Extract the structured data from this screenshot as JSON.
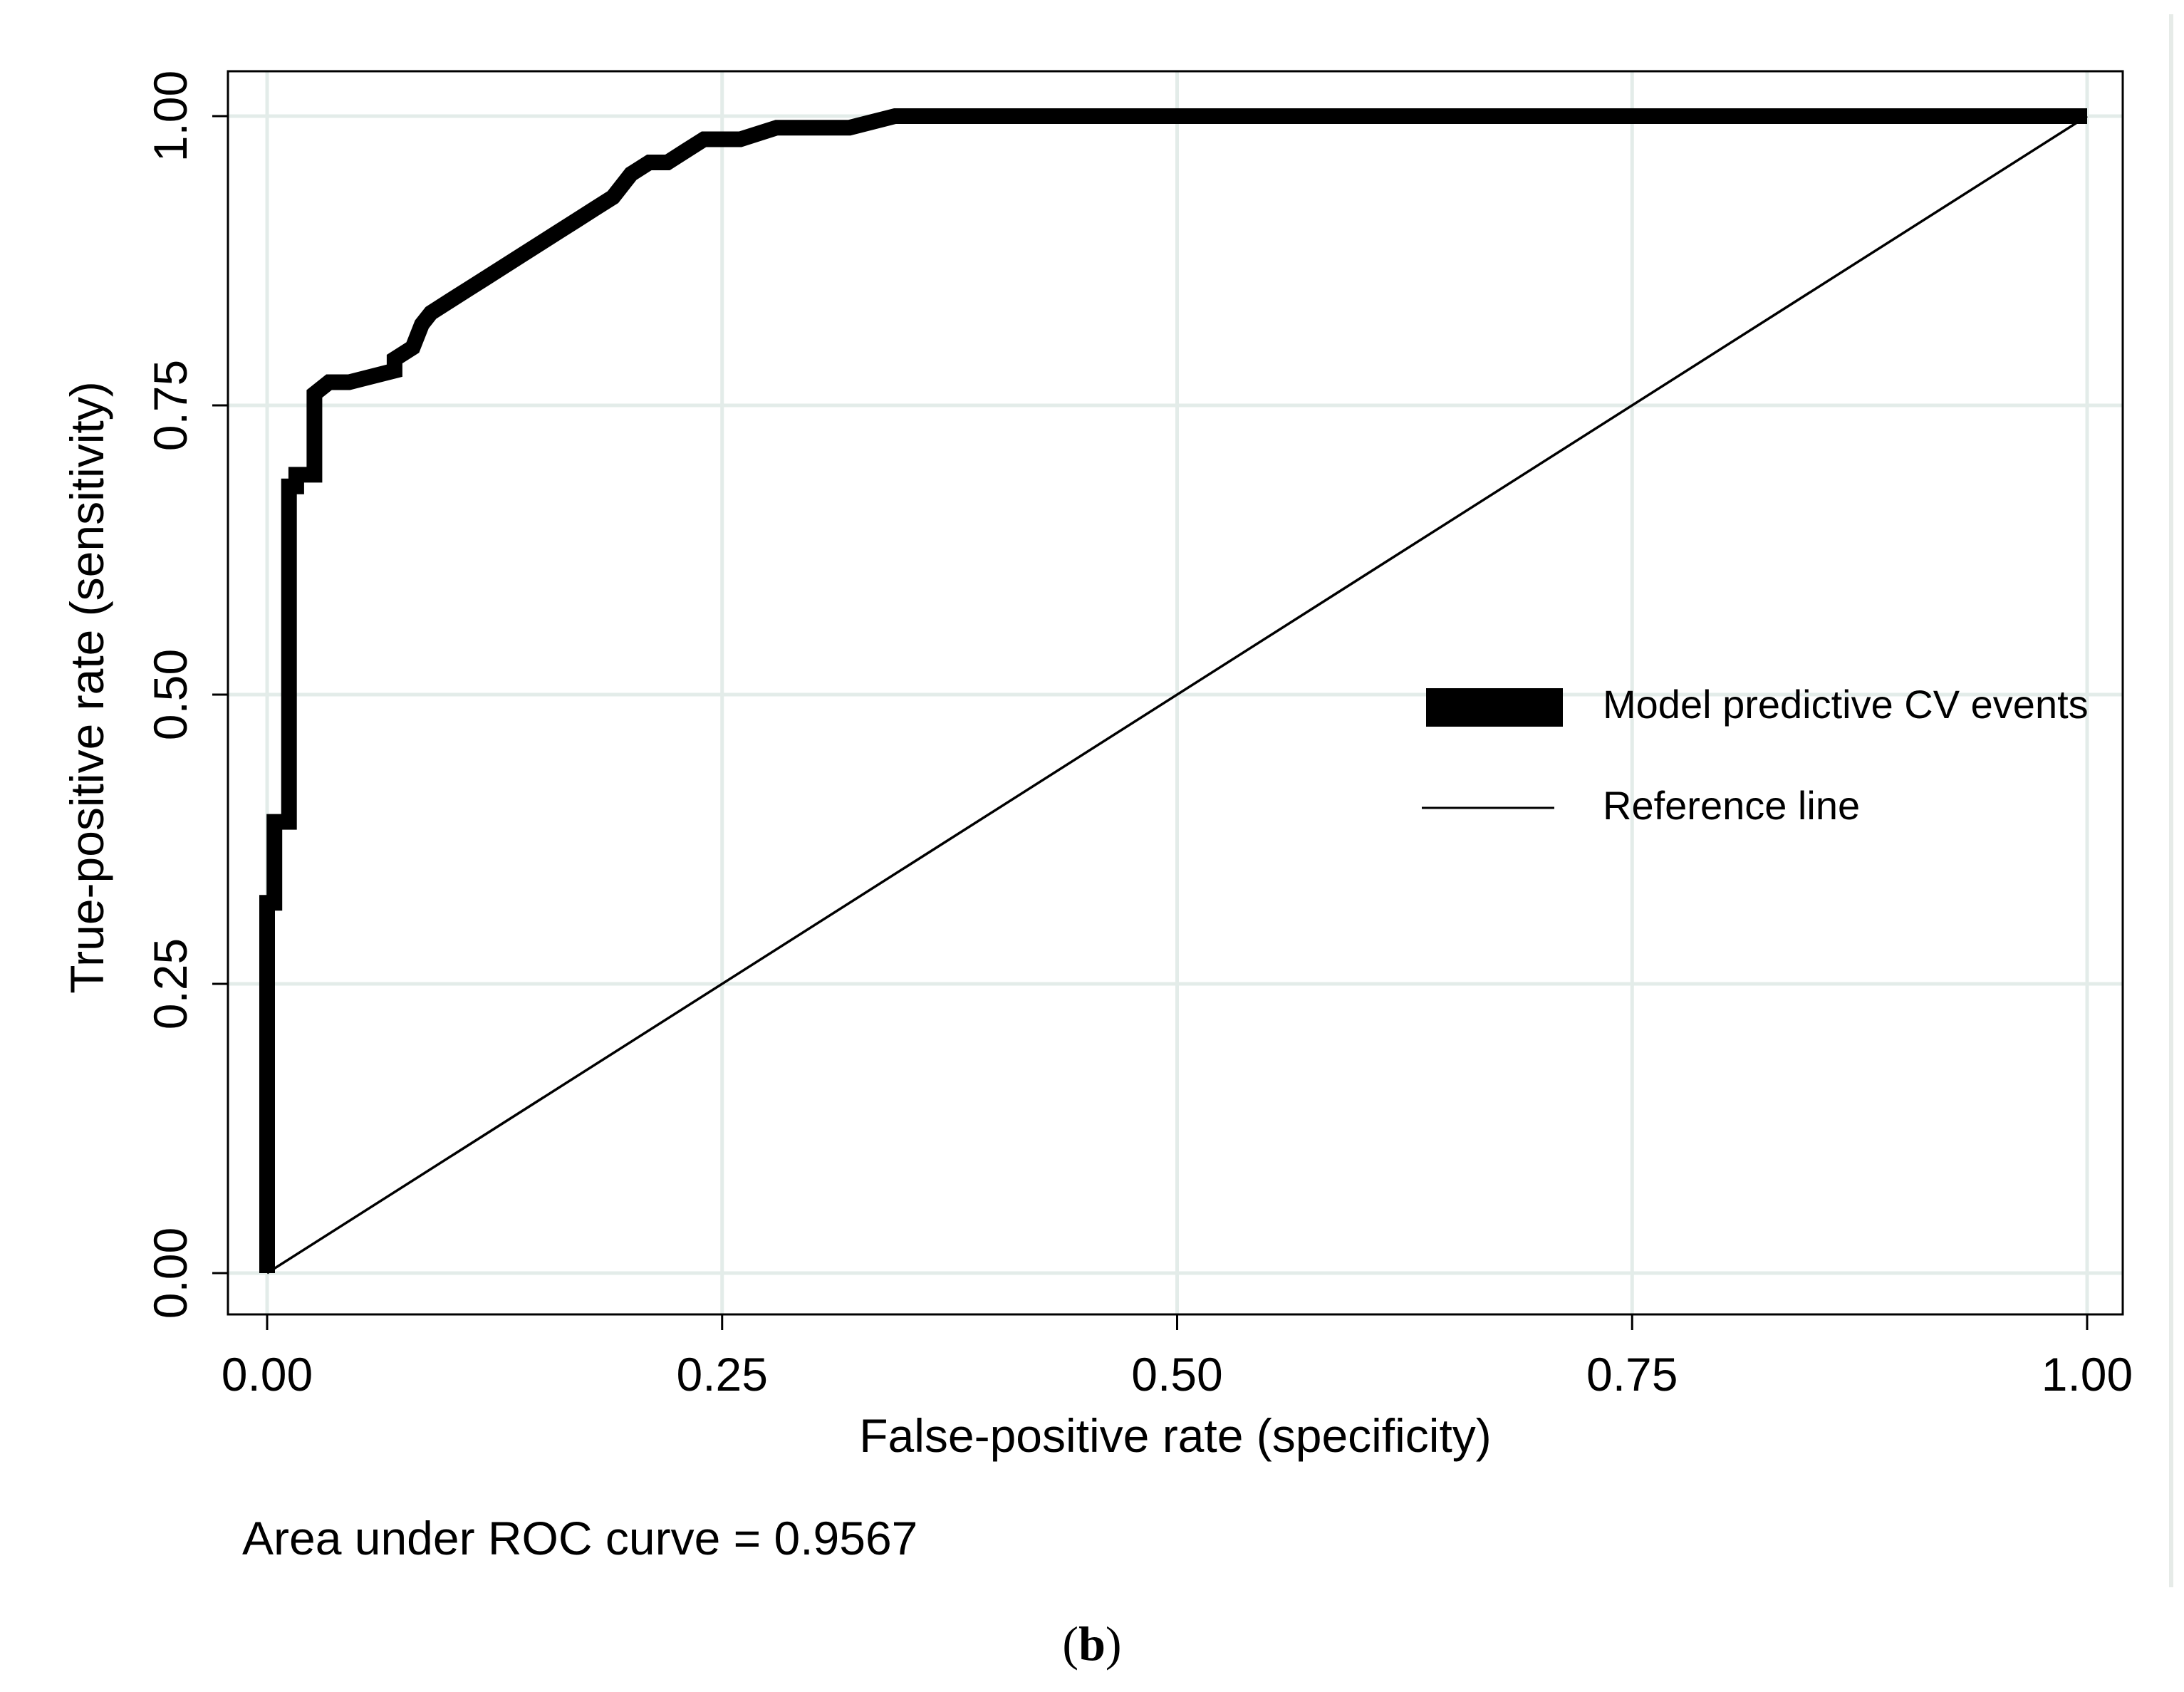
{
  "chart_data": {
    "type": "line",
    "xlabel": "False-positive rate (specificity)",
    "ylabel": "True-positive rate (sensitivity)",
    "xlim": [
      0,
      1
    ],
    "ylim": [
      0,
      1
    ],
    "xticks": [
      "0.00",
      "0.25",
      "0.50",
      "0.75",
      "1.00"
    ],
    "yticks": [
      "0.00",
      "0.25",
      "0.50",
      "0.75",
      "1.00"
    ],
    "grid": true,
    "legend_position": "right",
    "annotation": "Area under ROC curve = 0.9567",
    "series": [
      {
        "name": "Model predictive CV events",
        "style": "thick",
        "x": [
          0,
          0,
          0.004,
          0.004,
          0.012,
          0.012,
          0.016,
          0.016,
          0.026,
          0.026,
          0.034,
          0.045,
          0.07,
          0.07,
          0.08,
          0.085,
          0.09,
          0.1,
          0.11,
          0.12,
          0.13,
          0.14,
          0.15,
          0.16,
          0.17,
          0.18,
          0.19,
          0.2,
          0.21,
          0.22,
          0.23,
          0.24,
          0.26,
          0.28,
          0.3,
          0.32,
          0.345,
          0.4,
          0.5,
          0.6,
          0.7,
          0.8,
          0.9,
          1.0
        ],
        "y": [
          0,
          0.32,
          0.32,
          0.39,
          0.39,
          0.68,
          0.68,
          0.69,
          0.69,
          0.76,
          0.77,
          0.77,
          0.78,
          0.79,
          0.8,
          0.82,
          0.83,
          0.84,
          0.85,
          0.86,
          0.87,
          0.88,
          0.89,
          0.9,
          0.91,
          0.92,
          0.93,
          0.95,
          0.96,
          0.96,
          0.97,
          0.98,
          0.98,
          0.99,
          0.99,
          0.99,
          1.0,
          1.0,
          1.0,
          1.0,
          1.0,
          1.0,
          1.0,
          1.0
        ]
      },
      {
        "name": "Reference line",
        "style": "thin",
        "x": [
          0,
          1
        ],
        "y": [
          0,
          1
        ]
      }
    ]
  },
  "caption": {
    "open": "(",
    "label": "b",
    "close": ")"
  }
}
